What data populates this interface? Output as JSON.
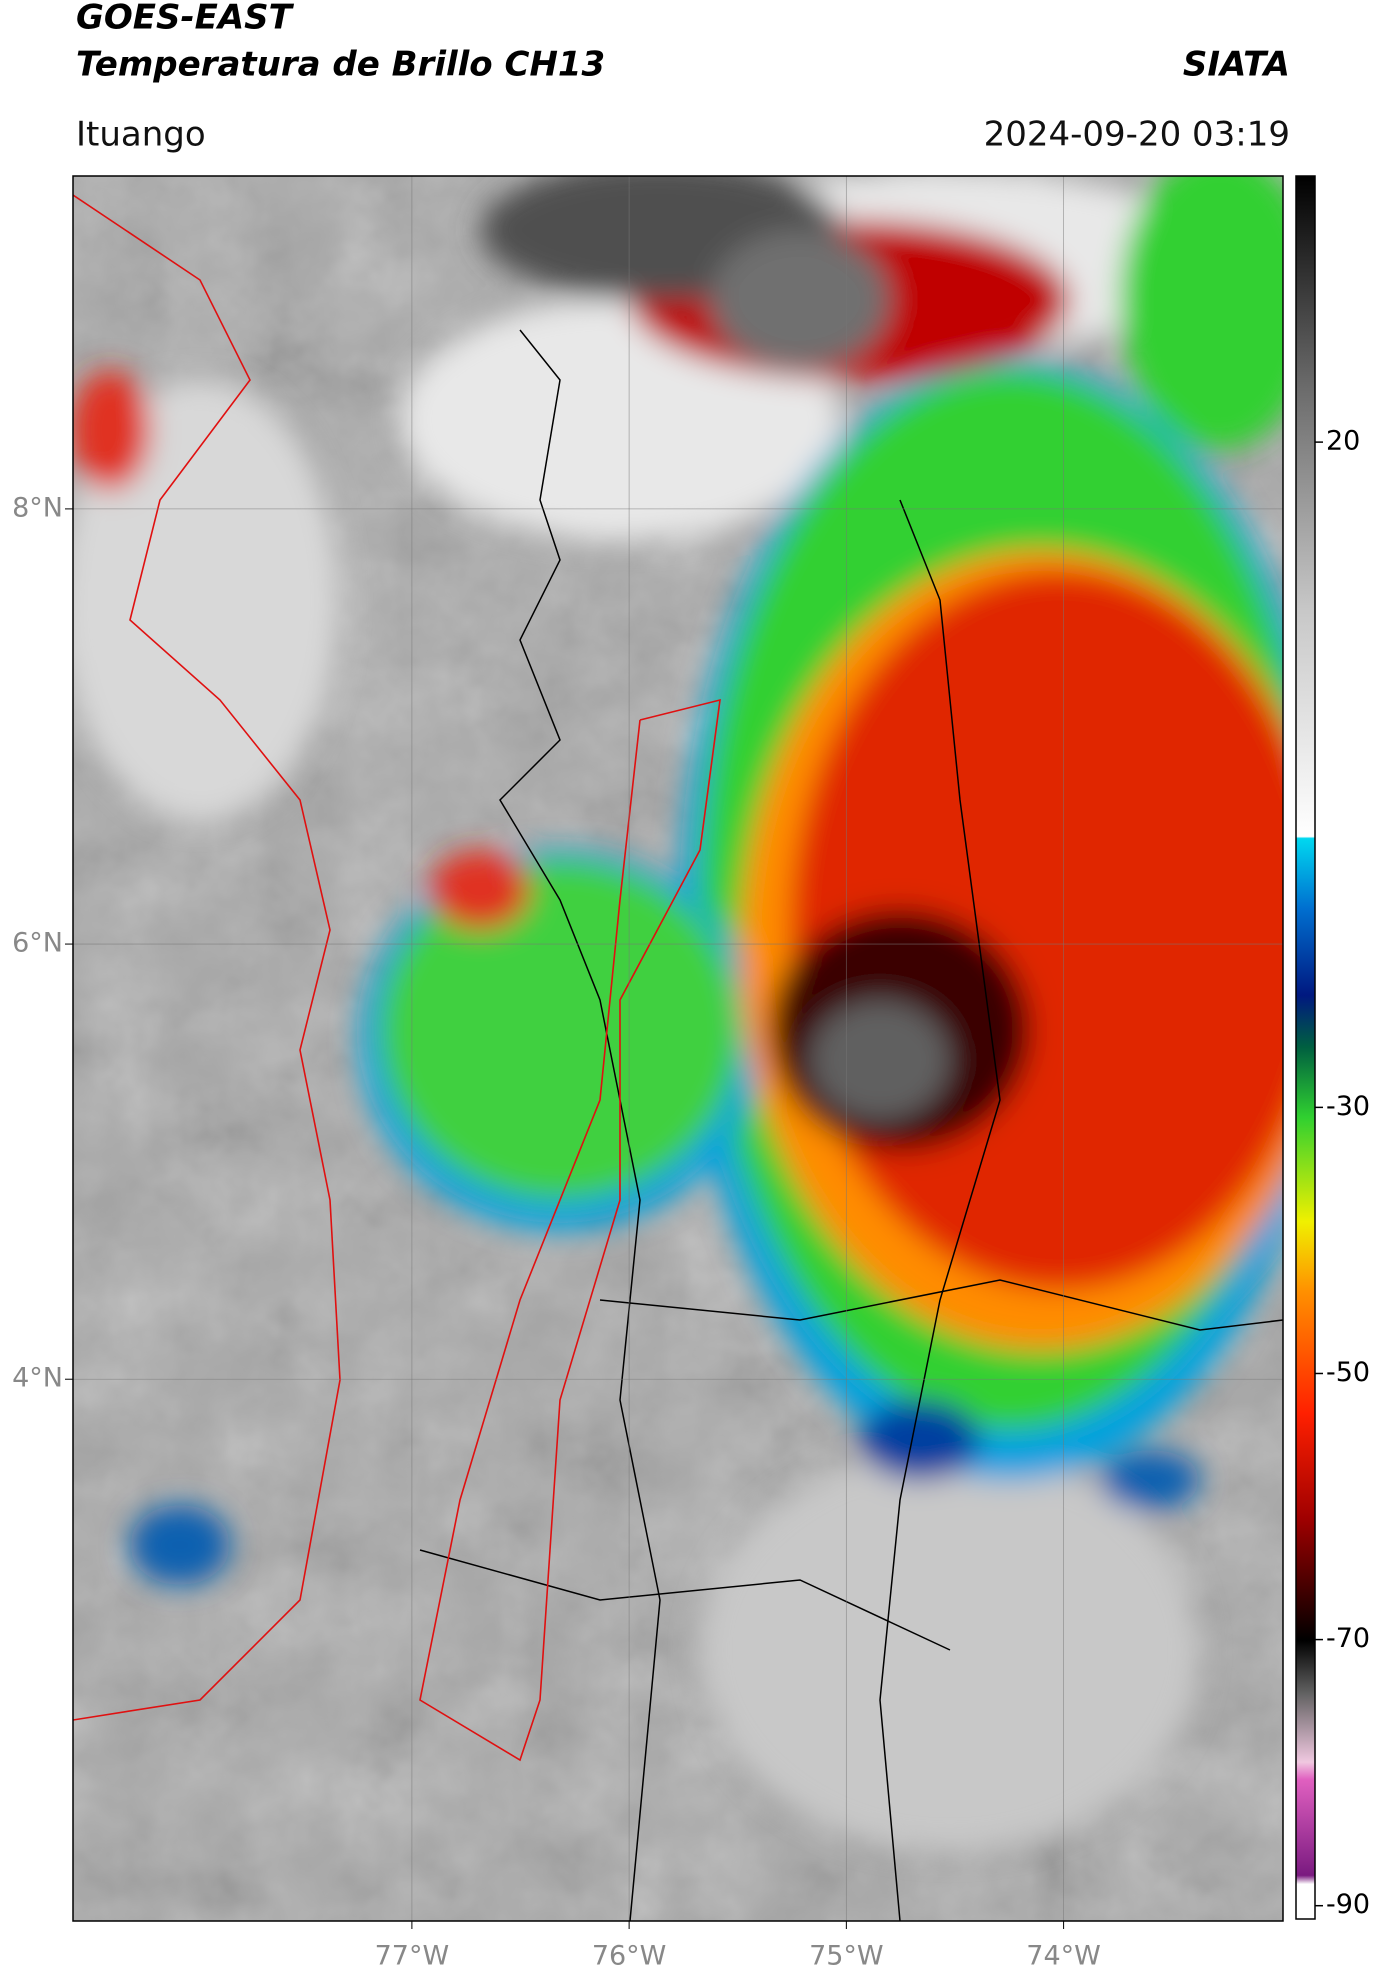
{
  "header": {
    "title": "GOES-EAST",
    "subtitle": "Temperatura de Brillo CH13",
    "brand": "SIATA",
    "location": "Ituango",
    "datetime": "2024-09-20 03:19"
  },
  "map": {
    "xlim": [
      -78.56,
      -72.99
    ],
    "ylim": [
      1.51,
      9.53
    ],
    "xticks": [
      {
        "value": -77,
        "label": "77°W"
      },
      {
        "value": -76,
        "label": "76°W"
      },
      {
        "value": -75,
        "label": "75°W"
      },
      {
        "value": -74,
        "label": "74°W"
      }
    ],
    "yticks": [
      {
        "value": 4,
        "label": "4°N"
      },
      {
        "value": 6,
        "label": "6°N"
      },
      {
        "value": 8,
        "label": "8°N"
      }
    ],
    "grid": true
  },
  "colorbar": {
    "lim": [
      -91,
      40
    ],
    "ticks": [
      -90,
      -70,
      -50,
      -30,
      20
    ]
  }
}
